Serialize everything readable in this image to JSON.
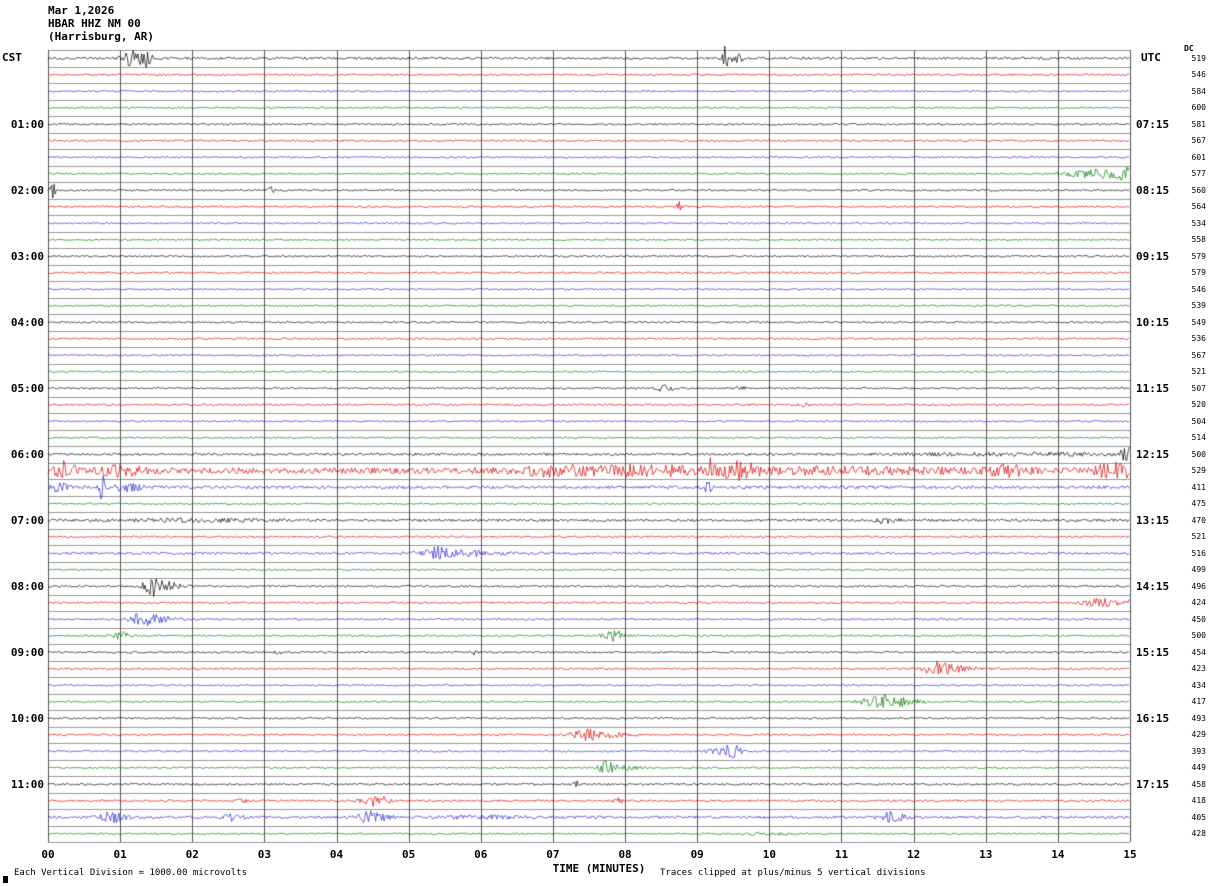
{
  "header": {
    "date": "Mar 1,2026",
    "station": "HBAR HHZ NM 00",
    "location": "(Harrisburg, AR)"
  },
  "axes": {
    "left_title": "CST",
    "right_title": "UTC",
    "dc_title": "DC",
    "x_title": "TIME (MINUTES)"
  },
  "footer": {
    "left": "Each Vertical Division = 1000.00 microvolts",
    "right": "Traces clipped at plus/minus 5 vertical divisions"
  },
  "chart_data": {
    "type": "line",
    "title": "HBAR HHZ NM 00 (Harrisburg, AR) — helicorder record, Mar 1,2026",
    "x_axis": {
      "label": "TIME (MINUTES)",
      "range_minutes": [
        0,
        15
      ],
      "ticks": [
        "00",
        "01",
        "02",
        "03",
        "04",
        "05",
        "06",
        "07",
        "08",
        "09",
        "10",
        "11",
        "12",
        "13",
        "14",
        "15"
      ]
    },
    "left_axis": {
      "title": "CST",
      "labels": [
        "01:00",
        "02:00",
        "03:00",
        "04:00",
        "05:00",
        "06:00",
        "07:00",
        "08:00",
        "09:00",
        "10:00",
        "11:00"
      ],
      "label_rows": [
        4,
        8,
        12,
        16,
        20,
        24,
        28,
        32,
        36,
        40,
        44
      ]
    },
    "right_axis": {
      "title": "UTC",
      "labels": [
        "07:15",
        "08:15",
        "09:15",
        "10:15",
        "11:15",
        "12:15",
        "13:15",
        "14:15",
        "15:15",
        "16:15",
        "17:15"
      ],
      "label_rows": [
        4,
        8,
        12,
        16,
        20,
        24,
        28,
        32,
        36,
        40,
        44
      ]
    },
    "colors": {
      "black": "#000000",
      "red": "#d40000",
      "blue": "#2222cc",
      "green": "#007700"
    },
    "grid_color_vertical": "#555555",
    "grid_color_horizontal": "#999999",
    "minutes_per_row": 15,
    "clip_divisions": 5,
    "scale_note": "Each Vertical Division = 1000.00 microvolts",
    "rows": [
      {
        "cst": "00:00",
        "c": "black",
        "dc": 519,
        "n": 1.2,
        "e": [
          [
            1.15,
            7,
            0.12
          ],
          [
            1.35,
            9,
            0.08
          ],
          [
            9.4,
            13,
            0.05
          ],
          [
            9.55,
            4,
            0.1
          ]
        ]
      },
      {
        "cst": "00:15",
        "c": "red",
        "dc": 546,
        "n": 0.9,
        "e": []
      },
      {
        "cst": "00:30",
        "c": "blue",
        "dc": 584,
        "n": 0.8,
        "e": []
      },
      {
        "cst": "00:45",
        "c": "green",
        "dc": 600,
        "n": 0.8,
        "e": []
      },
      {
        "cst": "01:00",
        "c": "black",
        "dc": 581,
        "n": 0.9,
        "e": []
      },
      {
        "cst": "01:15",
        "c": "red",
        "dc": 567,
        "n": 0.9,
        "e": []
      },
      {
        "cst": "01:30",
        "c": "blue",
        "dc": 601,
        "n": 0.8,
        "e": []
      },
      {
        "cst": "01:45",
        "c": "green",
        "dc": 577,
        "n": 0.8,
        "e": [
          [
            14.5,
            4,
            0.4
          ],
          [
            15.0,
            5,
            0.25
          ]
        ]
      },
      {
        "cst": "02:00",
        "c": "black",
        "dc": 560,
        "n": 0.9,
        "e": [
          [
            0.05,
            8,
            0.06
          ],
          [
            3.1,
            6,
            0.04
          ]
        ]
      },
      {
        "cst": "02:15",
        "c": "red",
        "dc": 564,
        "n": 0.9,
        "e": [
          [
            8.75,
            5,
            0.06
          ]
        ]
      },
      {
        "cst": "02:30",
        "c": "blue",
        "dc": 534,
        "n": 0.8,
        "e": []
      },
      {
        "cst": "02:45",
        "c": "green",
        "dc": 558,
        "n": 0.8,
        "e": []
      },
      {
        "cst": "03:00",
        "c": "black",
        "dc": 579,
        "n": 0.9,
        "e": []
      },
      {
        "cst": "03:15",
        "c": "red",
        "dc": 579,
        "n": 0.9,
        "e": []
      },
      {
        "cst": "03:30",
        "c": "blue",
        "dc": 546,
        "n": 0.8,
        "e": []
      },
      {
        "cst": "03:45",
        "c": "green",
        "dc": 539,
        "n": 0.8,
        "e": []
      },
      {
        "cst": "04:00",
        "c": "black",
        "dc": 549,
        "n": 0.9,
        "e": []
      },
      {
        "cst": "04:15",
        "c": "red",
        "dc": 536,
        "n": 0.9,
        "e": []
      },
      {
        "cst": "04:30",
        "c": "blue",
        "dc": 567,
        "n": 0.8,
        "e": []
      },
      {
        "cst": "04:45",
        "c": "green",
        "dc": 521,
        "n": 0.8,
        "e": []
      },
      {
        "cst": "05:00",
        "c": "black",
        "dc": 507,
        "n": 0.9,
        "e": [
          [
            8.55,
            3.5,
            0.12
          ],
          [
            9.6,
            2,
            0.08
          ]
        ]
      },
      {
        "cst": "05:15",
        "c": "red",
        "dc": 520,
        "n": 0.9,
        "e": [
          [
            10.5,
            2,
            0.05
          ]
        ]
      },
      {
        "cst": "05:30",
        "c": "blue",
        "dc": 504,
        "n": 0.8,
        "e": []
      },
      {
        "cst": "05:45",
        "c": "green",
        "dc": 514,
        "n": 0.8,
        "e": []
      },
      {
        "cst": "06:00",
        "c": "black",
        "dc": 500,
        "n": 1.2,
        "e": [
          [
            13.5,
            1.2,
            1.5
          ],
          [
            14.95,
            7,
            0.08
          ]
        ]
      },
      {
        "cst": "06:15",
        "c": "red",
        "dc": 529,
        "n": 3.0,
        "e": [
          [
            0.25,
            9,
            0.12
          ],
          [
            1.0,
            4,
            0.3
          ],
          [
            7.0,
            4,
            0.5
          ],
          [
            8.3,
            4,
            0.8
          ],
          [
            9.2,
            11,
            0.08
          ],
          [
            9.55,
            6,
            0.3
          ],
          [
            11.0,
            2,
            1.5
          ],
          [
            13.3,
            5,
            0.25
          ],
          [
            14.8,
            6,
            0.3
          ]
        ]
      },
      {
        "cst": "06:30",
        "c": "blue",
        "dc": 411,
        "n": 1.5,
        "e": [
          [
            0.15,
            5,
            0.1
          ],
          [
            0.75,
            13,
            0.04
          ],
          [
            1.1,
            4,
            0.2
          ],
          [
            9.15,
            5,
            0.05
          ]
        ]
      },
      {
        "cst": "06:45",
        "c": "green",
        "dc": 475,
        "n": 0.8,
        "e": []
      },
      {
        "cst": "07:00",
        "c": "black",
        "dc": 470,
        "n": 1.3,
        "e": [
          [
            2.0,
            1.2,
            1.0
          ],
          [
            11.6,
            2.5,
            0.15
          ]
        ]
      },
      {
        "cst": "07:15",
        "c": "red",
        "dc": 521,
        "n": 0.9,
        "e": []
      },
      {
        "cst": "07:30",
        "c": "blue",
        "dc": 516,
        "n": 1.2,
        "e": [
          [
            5.35,
            5.5,
            0.2
          ],
          [
            5.8,
            2.5,
            0.5
          ]
        ]
      },
      {
        "cst": "07:45",
        "c": "green",
        "dc": 499,
        "n": 0.8,
        "e": []
      },
      {
        "cst": "08:00",
        "c": "black",
        "dc": 496,
        "n": 1.0,
        "e": [
          [
            1.45,
            9,
            0.12
          ],
          [
            1.65,
            4,
            0.2
          ]
        ]
      },
      {
        "cst": "08:15",
        "c": "red",
        "dc": 424,
        "n": 0.9,
        "e": [
          [
            14.6,
            4,
            0.25
          ],
          [
            15.0,
            4,
            0.15
          ]
        ]
      },
      {
        "cst": "08:30",
        "c": "blue",
        "dc": 450,
        "n": 0.9,
        "e": [
          [
            1.3,
            6,
            0.15
          ],
          [
            1.55,
            3,
            0.25
          ]
        ]
      },
      {
        "cst": "08:45",
        "c": "green",
        "dc": 500,
        "n": 0.8,
        "e": [
          [
            1.0,
            4,
            0.12
          ],
          [
            7.85,
            5,
            0.15
          ]
        ]
      },
      {
        "cst": "09:00",
        "c": "black",
        "dc": 454,
        "n": 0.9,
        "e": [
          [
            3.2,
            2,
            0.05
          ],
          [
            5.9,
            2,
            0.05
          ]
        ]
      },
      {
        "cst": "09:15",
        "c": "red",
        "dc": 423,
        "n": 0.9,
        "e": [
          [
            12.3,
            6,
            0.18
          ],
          [
            12.6,
            3,
            0.3
          ]
        ]
      },
      {
        "cst": "09:30",
        "c": "blue",
        "dc": 434,
        "n": 0.8,
        "e": []
      },
      {
        "cst": "09:45",
        "c": "green",
        "dc": 417,
        "n": 0.8,
        "e": [
          [
            11.55,
            6,
            0.25
          ],
          [
            11.9,
            3,
            0.25
          ]
        ]
      },
      {
        "cst": "10:00",
        "c": "black",
        "dc": 493,
        "n": 0.9,
        "e": []
      },
      {
        "cst": "10:15",
        "c": "red",
        "dc": 429,
        "n": 0.9,
        "e": [
          [
            7.45,
            5,
            0.18
          ],
          [
            7.75,
            2.5,
            0.3
          ]
        ]
      },
      {
        "cst": "10:30",
        "c": "blue",
        "dc": 393,
        "n": 0.8,
        "e": [
          [
            9.5,
            5,
            0.12
          ],
          [
            9.35,
            3,
            0.2
          ]
        ]
      },
      {
        "cst": "10:45",
        "c": "green",
        "dc": 449,
        "n": 0.8,
        "e": [
          [
            7.75,
            6,
            0.12
          ],
          [
            8.0,
            3,
            0.18
          ]
        ]
      },
      {
        "cst": "11:00",
        "c": "black",
        "dc": 458,
        "n": 1.0,
        "e": [
          [
            7.35,
            3.5,
            0.06
          ]
        ]
      },
      {
        "cst": "11:15",
        "c": "red",
        "dc": 418,
        "n": 1.0,
        "e": [
          [
            2.7,
            2,
            0.06
          ],
          [
            4.55,
            5,
            0.18
          ],
          [
            7.9,
            2,
            0.08
          ]
        ]
      },
      {
        "cst": "11:30",
        "c": "blue",
        "dc": 405,
        "n": 1.3,
        "e": [
          [
            0.9,
            5,
            0.18
          ],
          [
            2.55,
            4,
            0.12
          ],
          [
            4.5,
            6,
            0.2
          ],
          [
            6.0,
            1.5,
            0.5
          ],
          [
            11.7,
            5,
            0.18
          ]
        ]
      },
      {
        "cst": "11:45",
        "c": "green",
        "dc": 428,
        "n": 0.8,
        "e": [
          [
            10.0,
            1.2,
            0.3
          ]
        ]
      }
    ]
  }
}
